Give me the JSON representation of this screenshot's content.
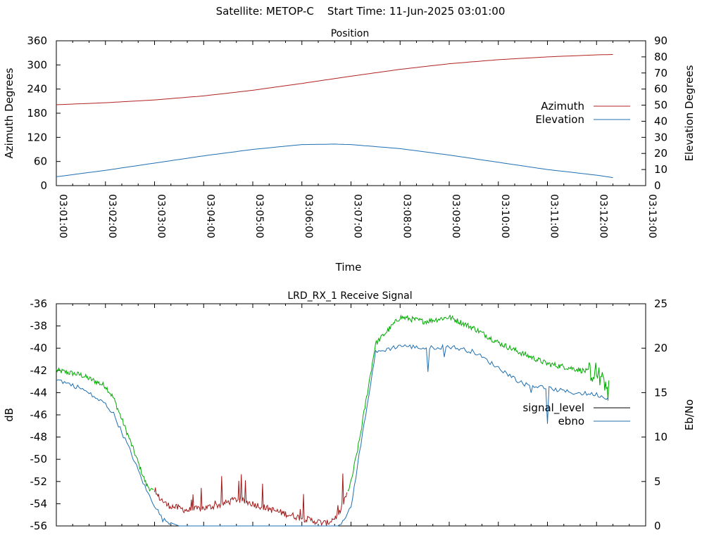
{
  "header": {
    "title": "Satellite: METOP-C    Start Time: 11-Jun-2025 03:01:00"
  },
  "colors": {
    "azimuth": "#b22222",
    "elevation": "#1f6fb2",
    "signal_red": "#a11a1a",
    "signal_green": "#00aa00",
    "signal_level": "#000000",
    "ebno": "#1f6fb2",
    "axis": "#000000"
  },
  "chart_data": [
    {
      "type": "line",
      "title": "Position",
      "xlabel": "Time",
      "ylabel": "Azimuth Degrees",
      "y2label": "Elevation Degrees",
      "xlim": [
        "03:01:00",
        "03:13:00"
      ],
      "ylim": [
        0,
        360
      ],
      "y2lim": [
        0,
        90
      ],
      "xticks": [
        "03:01:00",
        "03:02:00",
        "03:03:00",
        "03:04:00",
        "03:05:00",
        "03:06:00",
        "03:07:00",
        "03:08:00",
        "03:09:00",
        "03:10:00",
        "03:11:00",
        "03:12:00",
        "03:13:00"
      ],
      "yticks": [
        0,
        60,
        120,
        180,
        240,
        300,
        360
      ],
      "y2ticks": [
        0,
        10,
        20,
        30,
        40,
        50,
        60,
        70,
        80,
        90
      ],
      "legend_position": "right",
      "series": [
        {
          "name": "Azimuth",
          "axis": "left",
          "x": [
            "03:01:00",
            "03:02:00",
            "03:03:00",
            "03:04:00",
            "03:05:00",
            "03:06:00",
            "03:06:40",
            "03:07:00",
            "03:08:00",
            "03:09:00",
            "03:10:00",
            "03:11:00",
            "03:12:00",
            "03:12:20"
          ],
          "values": [
            201,
            206,
            213,
            223,
            237,
            254,
            266,
            272,
            289,
            303,
            313,
            320,
            325,
            326
          ]
        },
        {
          "name": "Elevation",
          "axis": "right",
          "x": [
            "03:01:00",
            "03:02:00",
            "03:03:00",
            "03:04:00",
            "03:05:00",
            "03:06:00",
            "03:06:40",
            "03:07:00",
            "03:08:00",
            "03:09:00",
            "03:10:00",
            "03:11:00",
            "03:12:00",
            "03:12:20"
          ],
          "values": [
            5.5,
            9.5,
            14,
            18.5,
            22.5,
            25.5,
            25.8,
            25.5,
            23,
            19,
            14.5,
            10,
            6.5,
            5
          ]
        }
      ]
    },
    {
      "type": "line",
      "title": "LRD_RX_1 Receive Signal",
      "xlabel": "",
      "ylabel": "dB",
      "y2label": "Eb/No",
      "xlim": [
        "03:01:00",
        "03:13:00"
      ],
      "ylim": [
        -56,
        -36
      ],
      "y2lim": [
        0,
        25
      ],
      "yticks": [
        -56,
        -54,
        -52,
        -50,
        -48,
        -46,
        -44,
        -42,
        -40,
        -38,
        -36
      ],
      "y2ticks": [
        0,
        5,
        10,
        15,
        20,
        25
      ],
      "legend_position": "right",
      "series": [
        {
          "name": "signal_level",
          "axis": "left",
          "x": [
            "03:01:00",
            "03:01:30",
            "03:02:00",
            "03:02:10",
            "03:02:30",
            "03:02:50",
            "03:03:15",
            "03:03:40",
            "03:04:00",
            "03:04:20",
            "03:04:40",
            "03:05:00",
            "03:05:30",
            "03:06:00",
            "03:06:30",
            "03:06:45",
            "03:07:00",
            "03:07:10",
            "03:07:30",
            "03:08:00",
            "03:08:30",
            "03:09:00",
            "03:09:30",
            "03:10:00",
            "03:10:30",
            "03:11:00",
            "03:11:30",
            "03:12:00",
            "03:12:15"
          ],
          "values": [
            -42.0,
            -42.4,
            -43.4,
            -44.5,
            -48.3,
            -52.3,
            -54.1,
            -54.6,
            -54.4,
            -54.1,
            -53.6,
            -54.0,
            -54.7,
            -55.3,
            -55.8,
            -55.0,
            -52.1,
            -48.4,
            -39.6,
            -37.2,
            -37.6,
            -37.2,
            -38.2,
            -39.5,
            -40.5,
            -41.4,
            -41.8,
            -42.3,
            -43.7
          ]
        },
        {
          "name": "ebno",
          "axis": "right",
          "x": [
            "03:01:00",
            "03:01:30",
            "03:02:00",
            "03:02:10",
            "03:02:30",
            "03:02:50",
            "03:03:10",
            "03:03:30",
            "03:04:00",
            "03:05:00",
            "03:06:00",
            "03:06:45",
            "03:07:00",
            "03:07:10",
            "03:07:30",
            "03:08:00",
            "03:08:30",
            "03:09:00",
            "03:09:30",
            "03:10:00",
            "03:10:30",
            "03:11:00",
            "03:11:30",
            "03:12:00",
            "03:12:15"
          ],
          "values": [
            16.5,
            15.5,
            13.7,
            12.6,
            8.5,
            4.0,
            0.7,
            0,
            0,
            0,
            0,
            0,
            2.0,
            8.0,
            19.5,
            20.3,
            20.0,
            20.2,
            19.6,
            17.8,
            16.0,
            15.5,
            15.0,
            14.8,
            14.3
          ]
        }
      ]
    }
  ]
}
